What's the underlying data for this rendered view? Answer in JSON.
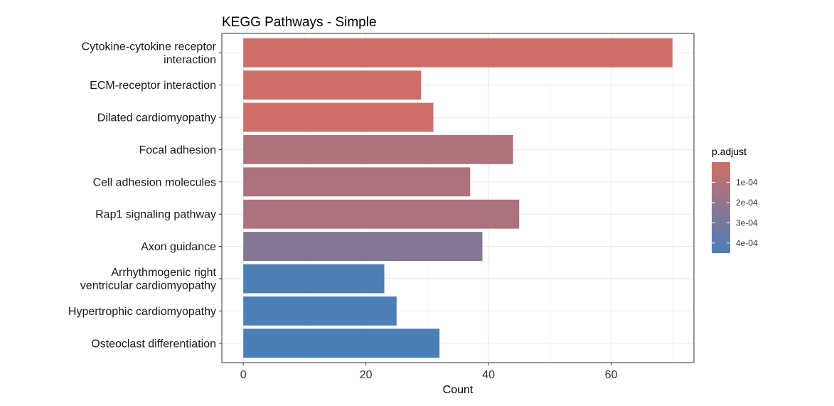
{
  "chart_data": {
    "type": "bar",
    "orientation": "horizontal",
    "title": "KEGG Pathways - Simple",
    "xlabel": "Count",
    "ylabel": "",
    "xlim": [
      -3.5,
      73.5
    ],
    "xticks": [
      0,
      20,
      40,
      60
    ],
    "grid": true,
    "legend_position": "right",
    "categories": [
      [
        "Cytokine-cytokine receptor",
        "interaction"
      ],
      [
        "ECM-receptor interaction"
      ],
      [
        "Dilated cardiomyopathy"
      ],
      [
        "Focal adhesion"
      ],
      [
        "Cell adhesion molecules"
      ],
      [
        "Rap1 signaling pathway"
      ],
      [
        "Axon guidance"
      ],
      [
        "Arrhythmogenic right",
        "ventricular cardiomyopathy"
      ],
      [
        "Hypertrophic cardiomyopathy"
      ],
      [
        "Osteoclast differentiation"
      ]
    ],
    "values": [
      70,
      29,
      31,
      44,
      37,
      45,
      39,
      23,
      25,
      32
    ],
    "p_adjust": [
      1e-07,
      2e-07,
      5e-07,
      0.00011,
      0.00012,
      0.00012,
      0.00025,
      0.00044,
      0.00044,
      0.00045
    ],
    "legend": {
      "title": "p.adjust",
      "min": 1e-07,
      "max": 0.00045,
      "ticks": [
        0.0001,
        0.0002,
        0.0003,
        0.0004
      ],
      "tick_labels": [
        "1e-04",
        "2e-04",
        "3e-04",
        "4e-04"
      ],
      "low_color": "#CF6E68",
      "high_color": "#4A7EB7"
    }
  }
}
